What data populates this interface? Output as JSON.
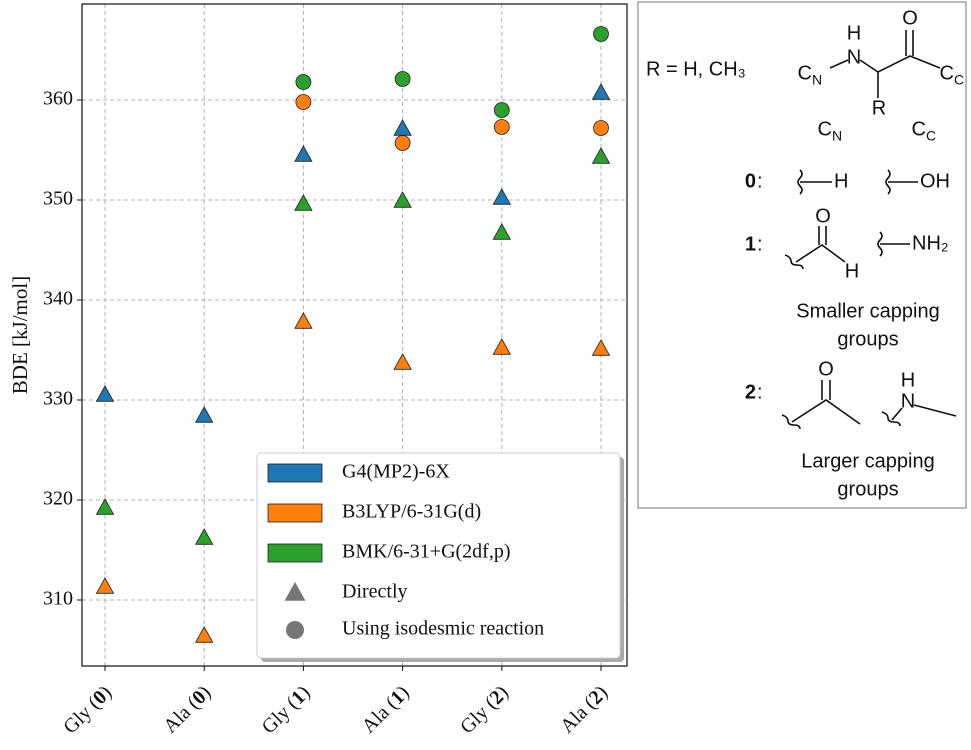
{
  "chart_data": {
    "type": "scatter",
    "ylabel": "BDE [kJ/mol]",
    "categories": [
      "Gly (0)",
      "Ala (0)",
      "Gly (1)",
      "Ala (1)",
      "Gly (2)",
      "Ala (2)"
    ],
    "ylim": [
      303.4,
      369.6
    ],
    "yticks": [
      310,
      320,
      330,
      340,
      350,
      360
    ],
    "grid": true,
    "legend": "lower right",
    "series": [
      {
        "name": "G4(MP2)-6X",
        "color": "#1f77b4",
        "values": [
          330.5,
          328.4,
          354.5,
          357.1,
          350.2,
          360.7
        ],
        "isodesmic_values": [
          null,
          null,
          null,
          null,
          null,
          null
        ]
      },
      {
        "name": "B3LYP/6-31G(d)",
        "color": "#ff7f0e",
        "values": [
          311.3,
          306.4,
          337.8,
          333.7,
          335.2,
          335.1
        ],
        "isodesmic_values": [
          null,
          null,
          359.8,
          355.7,
          357.3,
          357.2
        ]
      },
      {
        "name": "BMK/6-31+G(2df,p)",
        "color": "#2ca02c",
        "values": [
          319.2,
          316.2,
          349.6,
          349.9,
          346.7,
          354.3
        ],
        "isodesmic_values": [
          null,
          null,
          361.8,
          362.1,
          359.0,
          366.6
        ]
      }
    ],
    "markers": [
      {
        "name": "Directly",
        "shape": "triangle"
      },
      {
        "name": "Using isodesmic reaction",
        "shape": "circle"
      }
    ]
  },
  "diagram": {
    "r_label": "R = H, CH₃",
    "main": {
      "n": "N",
      "h": "H",
      "o": "O",
      "r": "R",
      "cn": {
        "main": "C",
        "sub": "N"
      },
      "cc": {
        "main": "C",
        "sub": "C"
      }
    },
    "legend_cn": {
      "main": "C",
      "sub": "N"
    },
    "legend_cc": {
      "main": "C",
      "sub": "C"
    },
    "groups": [
      {
        "index": "0",
        "cn": "H",
        "cc": "OH"
      },
      {
        "index": "1",
        "cn_o": "O",
        "cn_h": "H",
        "cc": "NH₂",
        "caption": [
          "Smaller capping",
          "groups"
        ]
      },
      {
        "index": "2",
        "cn_o": "O",
        "cc_h": "H",
        "cc_n": "N",
        "caption": [
          "Larger capping",
          "groups"
        ]
      }
    ],
    "separator": ":"
  }
}
